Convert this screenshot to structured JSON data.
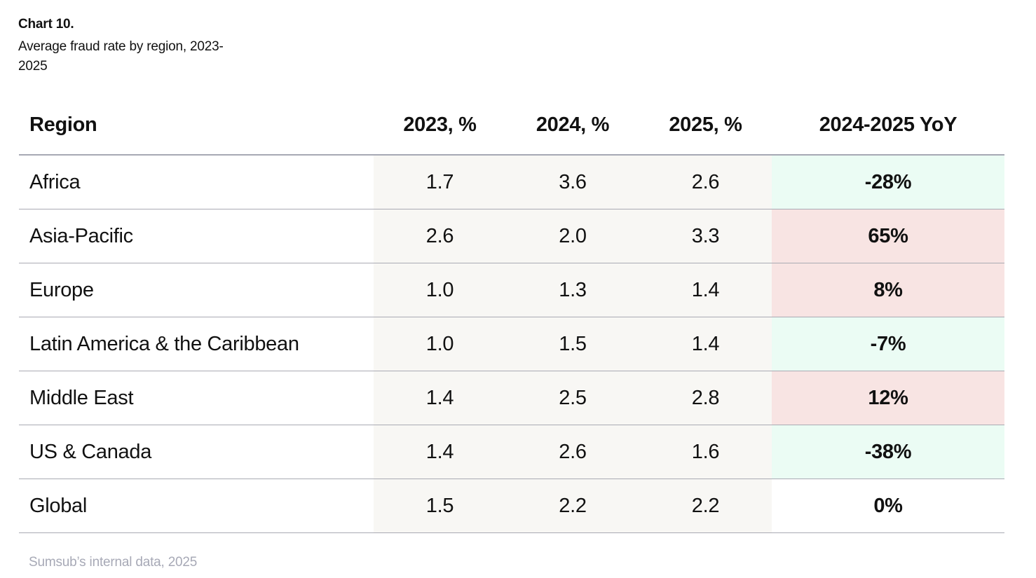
{
  "header": {
    "chart_label": "Chart 10.",
    "title": "Average fraud rate by region, 2023-2025"
  },
  "colors": {
    "decrease": "#ebfcf4",
    "increase": "#f8e4e3",
    "neutral": "#ffffff",
    "value_column_bg": "#f8f7f4"
  },
  "chart_data": {
    "type": "table",
    "title": "Average fraud rate by region, 2023-2025",
    "columns": [
      "Region",
      "2023, %",
      "2024, %",
      "2025, %",
      "2024-2025 YoY"
    ],
    "rows": [
      {
        "region": "Africa",
        "y2023": "1.7",
        "y2024": "3.6",
        "y2025": "2.6",
        "yoy": "-28%",
        "trend": "decrease"
      },
      {
        "region": "Asia-Pacific",
        "y2023": "2.6",
        "y2024": "2.0",
        "y2025": "3.3",
        "yoy": "65%",
        "trend": "increase"
      },
      {
        "region": "Europe",
        "y2023": "1.0",
        "y2024": "1.3",
        "y2025": "1.4",
        "yoy": "8%",
        "trend": "increase"
      },
      {
        "region": "Latin America & the Caribbean",
        "y2023": "1.0",
        "y2024": "1.5",
        "y2025": "1.4",
        "yoy": "-7%",
        "trend": "decrease"
      },
      {
        "region": "Middle East",
        "y2023": "1.4",
        "y2024": "2.5",
        "y2025": "2.8",
        "yoy": "12%",
        "trend": "increase"
      },
      {
        "region": "US & Canada",
        "y2023": "1.4",
        "y2024": "2.6",
        "y2025": "1.6",
        "yoy": "-38%",
        "trend": "decrease"
      },
      {
        "region": "Global",
        "y2023": "1.5",
        "y2024": "2.2",
        "y2025": "2.2",
        "yoy": "0%",
        "trend": "neutral"
      }
    ]
  },
  "footer": {
    "source": "Sumsub’s internal data, 2025"
  }
}
